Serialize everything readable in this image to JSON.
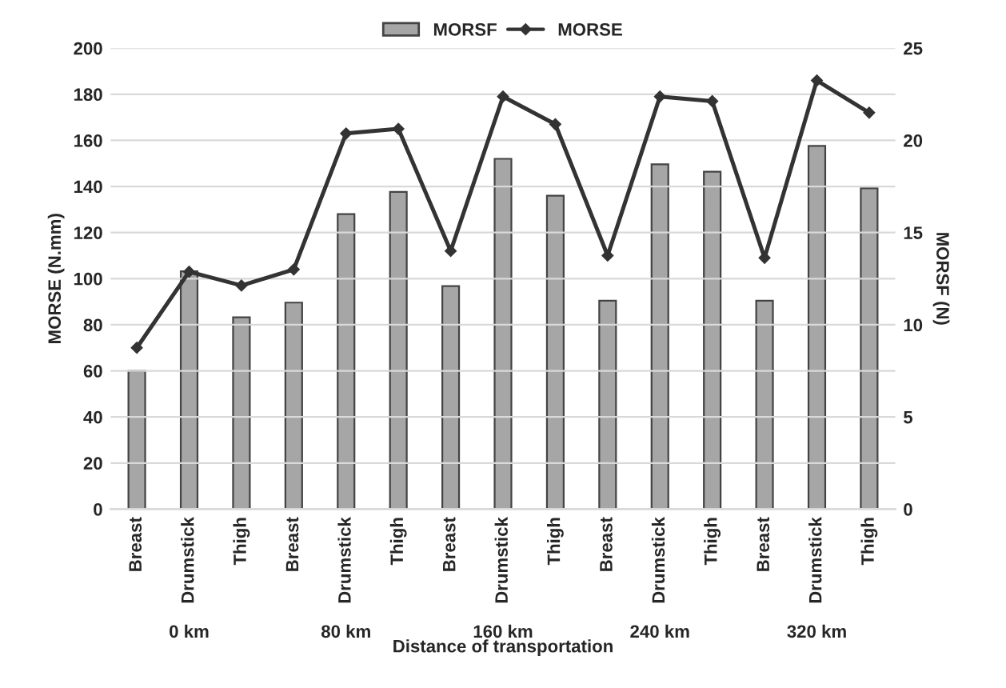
{
  "chart_data": {
    "type": "bar",
    "xlabel": "Distance of transportation",
    "ylabel": "MORSE (N.mm)",
    "y2label": "MORSF (N)",
    "categories": [
      "Breast",
      "Drumstick",
      "Thigh",
      "Breast",
      "Drumstick",
      "Thigh",
      "Breast",
      "Drumstick",
      "Thigh",
      "Breast",
      "Drumstick",
      "Thigh",
      "Breast",
      "Drumstick",
      "Thigh"
    ],
    "series": [
      {
        "name": "MORSF",
        "axis": "y2",
        "color": "#a6a6a6",
        "values": [
          7.5,
          12.9,
          10.4,
          11.2,
          16.0,
          17.2,
          12.1,
          19.0,
          17.0,
          11.3,
          18.7,
          18.3,
          11.3,
          19.7,
          17.4
        ]
      },
      {
        "name": "MORSE",
        "type": "line",
        "axis": "y",
        "color": "#333333",
        "marker": "diamond",
        "line_style": "solid",
        "values": [
          70,
          103,
          97,
          104,
          163,
          165,
          112,
          179,
          167,
          110,
          179,
          177,
          109,
          186,
          172
        ]
      }
    ],
    "ylim": [
      0,
      200
    ],
    "yticks": [
      0,
      20,
      40,
      60,
      80,
      100,
      120,
      140,
      160,
      180,
      200
    ],
    "y2lim": [
      0,
      25
    ],
    "y2ticks": [
      0,
      5,
      10,
      15,
      20,
      25
    ],
    "grid": "y",
    "legend": "top",
    "annotations": [
      "0 km",
      "80 km",
      "160 km",
      "240 km",
      "320 km"
    ]
  }
}
